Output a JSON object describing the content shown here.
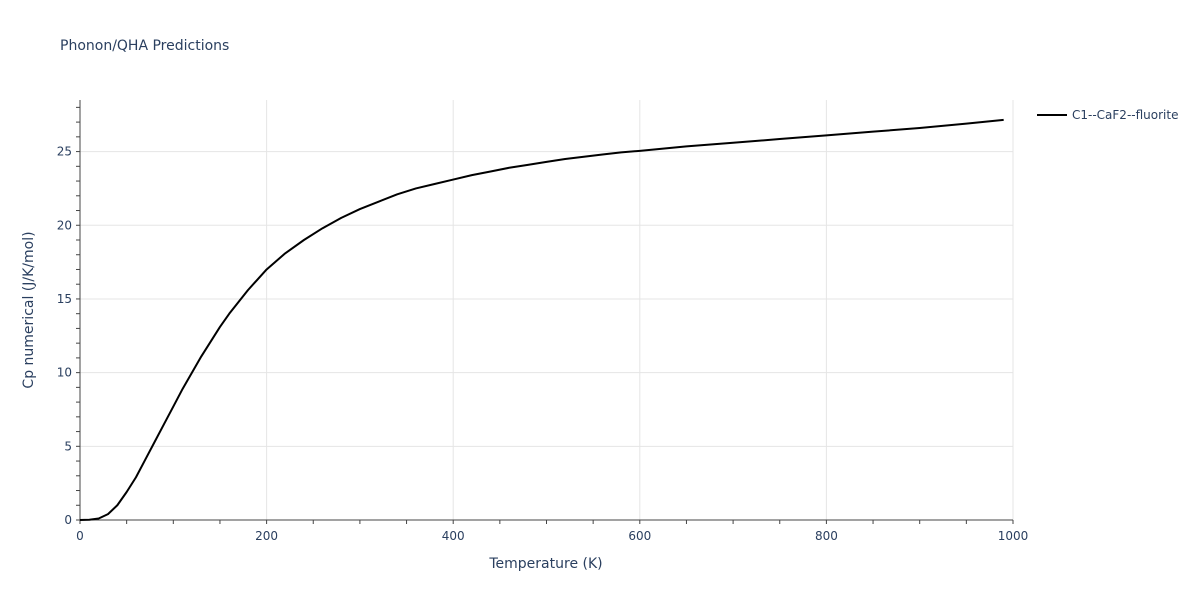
{
  "chart_data": {
    "type": "line",
    "title": "Phonon/QHA Predictions",
    "xlabel": "Temperature (K)",
    "ylabel": "Cp numerical (J/K/mol)",
    "xlim": [
      0,
      1000
    ],
    "ylim": [
      0,
      28.5
    ],
    "xticks": [
      0,
      200,
      400,
      600,
      800,
      1000
    ],
    "yticks": [
      0,
      5,
      10,
      15,
      20,
      25
    ],
    "grid": true,
    "legend_position": "top-right",
    "series": [
      {
        "name": "C1--CaF2--fluorite",
        "color": "#000000",
        "x": [
          0,
          10,
          20,
          30,
          40,
          50,
          60,
          70,
          80,
          90,
          100,
          110,
          120,
          130,
          140,
          150,
          160,
          170,
          180,
          190,
          200,
          220,
          240,
          260,
          280,
          300,
          320,
          340,
          360,
          380,
          400,
          420,
          440,
          460,
          480,
          500,
          520,
          540,
          560,
          580,
          600,
          650,
          700,
          750,
          800,
          850,
          900,
          950,
          990
        ],
        "y": [
          0,
          0.02,
          0.1,
          0.4,
          1.0,
          1.9,
          2.9,
          4.1,
          5.3,
          6.5,
          7.7,
          8.9,
          10.0,
          11.1,
          12.1,
          13.1,
          14.0,
          14.8,
          15.6,
          16.3,
          17.0,
          18.1,
          19.0,
          19.8,
          20.5,
          21.1,
          21.6,
          22.1,
          22.5,
          22.8,
          23.1,
          23.4,
          23.65,
          23.9,
          24.1,
          24.3,
          24.5,
          24.65,
          24.8,
          24.95,
          25.05,
          25.35,
          25.6,
          25.85,
          26.1,
          26.35,
          26.6,
          26.9,
          27.15
        ]
      }
    ]
  }
}
